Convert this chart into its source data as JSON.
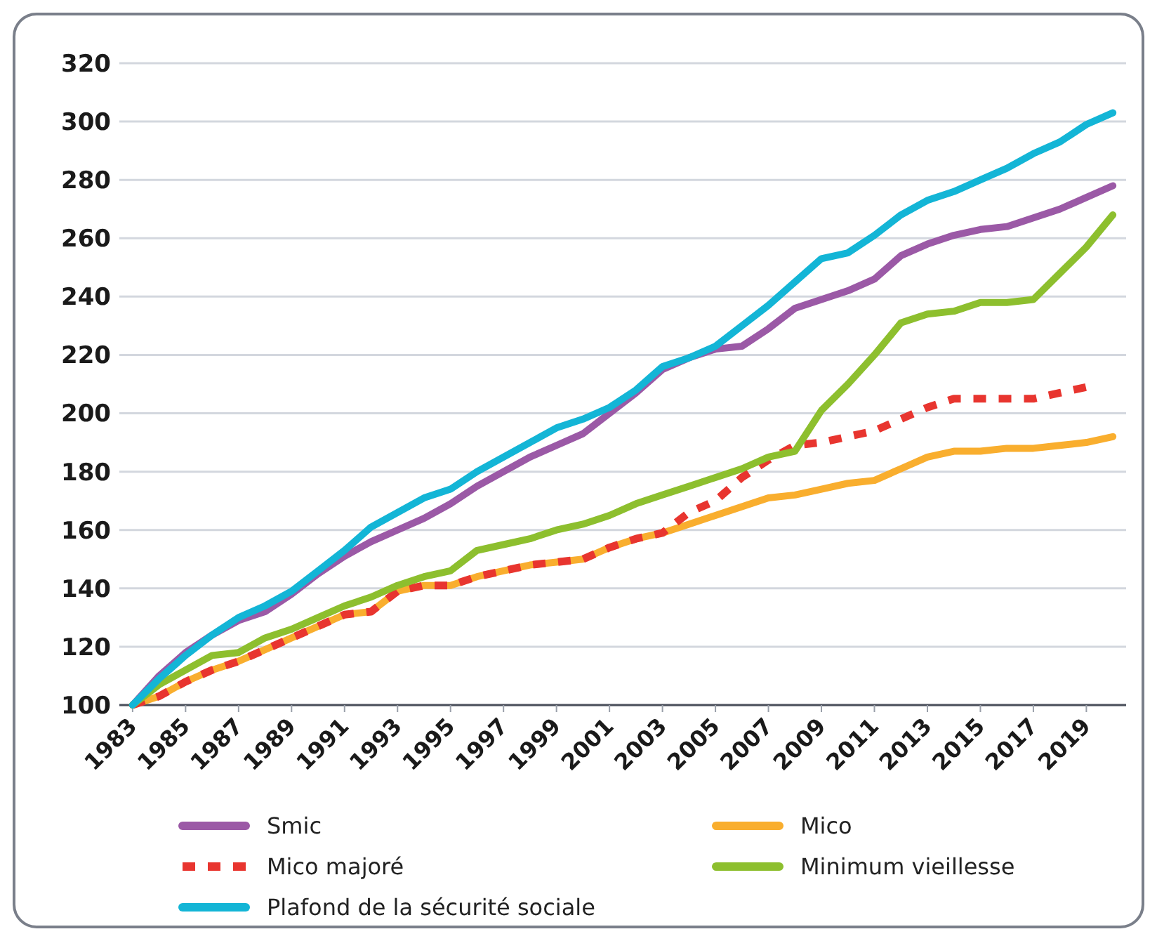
{
  "chart_data": {
    "type": "line",
    "x": [
      1983,
      1984,
      1985,
      1986,
      1987,
      1988,
      1989,
      1990,
      1991,
      1992,
      1993,
      1994,
      1995,
      1996,
      1997,
      1998,
      1999,
      2000,
      2001,
      2002,
      2003,
      2004,
      2005,
      2006,
      2007,
      2008,
      2009,
      2010,
      2011,
      2012,
      2013,
      2014,
      2015,
      2016,
      2017,
      2018,
      2019,
      2020
    ],
    "series": [
      {
        "name": "Smic",
        "color": "#9b59a6",
        "values": [
          100,
          110,
          118,
          124,
          129,
          132,
          138,
          145,
          151,
          156,
          160,
          164,
          169,
          175,
          180,
          185,
          189,
          193,
          200,
          207,
          215,
          219,
          222,
          223,
          229,
          236,
          239,
          242,
          246,
          254,
          258,
          261,
          263,
          264,
          267,
          270,
          274,
          278
        ]
      },
      {
        "name": "Mico",
        "color": "#f9ae2e",
        "values": [
          100,
          103,
          108,
          112,
          115,
          119,
          123,
          127,
          131,
          132,
          139,
          141,
          141,
          144,
          146,
          148,
          149,
          150,
          154,
          157,
          159,
          162,
          165,
          168,
          171,
          172,
          174,
          176,
          177,
          181,
          185,
          187,
          187,
          188,
          188,
          189,
          190,
          192
        ]
      },
      {
        "name": "Mico majoré",
        "color": "#e8352f",
        "line_style": "dashed",
        "values": [
          100,
          103,
          108,
          112,
          115,
          119,
          123,
          127,
          131,
          132,
          139,
          141,
          141,
          144,
          146,
          148,
          149,
          150,
          154,
          157,
          159,
          166,
          170,
          178,
          184,
          189,
          190,
          192,
          194,
          198,
          202,
          205,
          205,
          205,
          205,
          207,
          209,
          null
        ]
      },
      {
        "name": "Minimum vieillesse",
        "color": "#8dbf2e",
        "values": [
          100,
          107,
          112,
          117,
          118,
          123,
          126,
          130,
          134,
          137,
          141,
          144,
          146,
          153,
          155,
          157,
          160,
          162,
          165,
          169,
          172,
          175,
          178,
          181,
          185,
          187,
          201,
          210,
          220,
          231,
          234,
          235,
          238,
          238,
          239,
          248,
          257,
          268
        ]
      },
      {
        "name": "Plafond de la sécurité sociale",
        "color": "#13b5d6",
        "values": [
          100,
          109,
          117,
          124,
          130,
          134,
          139,
          146,
          153,
          161,
          166,
          171,
          174,
          180,
          185,
          190,
          195,
          198,
          202,
          208,
          216,
          219,
          223,
          230,
          237,
          245,
          253,
          255,
          261,
          268,
          273,
          276,
          280,
          284,
          289,
          293,
          299,
          303
        ]
      }
    ],
    "xlim": [
      1982.5,
      2020.5
    ],
    "xticks": [
      1983,
      1985,
      1987,
      1989,
      1991,
      1993,
      1995,
      1997,
      1999,
      2001,
      2003,
      2005,
      2007,
      2009,
      2011,
      2013,
      2015,
      2017,
      2019
    ],
    "ylim": [
      100,
      320
    ],
    "yticks": [
      100,
      120,
      140,
      160,
      180,
      200,
      220,
      240,
      260,
      280,
      300,
      320
    ],
    "grid": "y",
    "legend": "bottom",
    "line_style": "solid",
    "marker": "none"
  }
}
